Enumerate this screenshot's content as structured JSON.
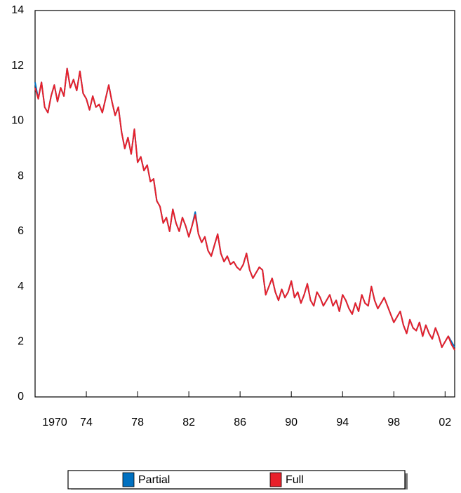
{
  "chart_data": {
    "type": "line",
    "x": [
      1970,
      1970.25,
      1970.5,
      1970.75,
      1971,
      1971.25,
      1971.5,
      1971.75,
      1972,
      1972.25,
      1972.5,
      1972.75,
      1973,
      1973.25,
      1973.5,
      1973.75,
      1974,
      1974.25,
      1974.5,
      1974.75,
      1975,
      1975.25,
      1975.5,
      1975.75,
      1976,
      1976.25,
      1976.5,
      1976.75,
      1977,
      1977.25,
      1977.5,
      1977.75,
      1978,
      1978.25,
      1978.5,
      1978.75,
      1979,
      1979.25,
      1979.5,
      1979.75,
      1980,
      1980.25,
      1980.5,
      1980.75,
      1981,
      1981.25,
      1981.5,
      1981.75,
      1982,
      1982.25,
      1982.5,
      1982.75,
      1983,
      1983.25,
      1983.5,
      1983.75,
      1984,
      1984.25,
      1984.5,
      1984.75,
      1985,
      1985.25,
      1985.5,
      1985.75,
      1986,
      1986.25,
      1986.5,
      1986.75,
      1987,
      1987.25,
      1987.5,
      1987.75,
      1988,
      1988.25,
      1988.5,
      1988.75,
      1989,
      1989.25,
      1989.5,
      1989.75,
      1990,
      1990.25,
      1990.5,
      1990.75,
      1991,
      1991.25,
      1991.5,
      1991.75,
      1992,
      1992.25,
      1992.5,
      1992.75,
      1993,
      1993.25,
      1993.5,
      1993.75,
      1994,
      1994.25,
      1994.5,
      1994.75,
      1995,
      1995.25,
      1995.5,
      1995.75,
      1996,
      1996.25,
      1996.5,
      1996.75,
      1997,
      1997.25,
      1997.5,
      1997.75,
      1998,
      1998.25,
      1998.5,
      1998.75,
      1999,
      1999.25,
      1999.5,
      1999.75,
      2000,
      2000.25,
      2000.5,
      2000.75,
      2001,
      2001.25,
      2001.5,
      2001.75,
      2002,
      2002.25,
      2002.5,
      2002.75
    ],
    "series": [
      {
        "name": "Partial",
        "color": "#0070c0",
        "values": [
          11.4,
          10.8,
          11.4,
          10.5,
          10.3,
          10.9,
          11.3,
          10.7,
          11.2,
          10.9,
          11.9,
          11.2,
          11.5,
          11.1,
          11.8,
          11.0,
          10.8,
          10.4,
          10.9,
          10.5,
          10.6,
          10.3,
          10.8,
          11.3,
          10.7,
          10.2,
          10.5,
          9.6,
          9.0,
          9.4,
          8.8,
          9.7,
          8.5,
          8.7,
          8.2,
          8.4,
          7.8,
          7.9,
          7.1,
          6.9,
          6.3,
          6.5,
          6.0,
          6.8,
          6.3,
          6.0,
          6.5,
          6.2,
          5.8,
          6.2,
          6.7,
          5.9,
          5.6,
          5.8,
          5.3,
          5.1,
          5.5,
          5.9,
          5.2,
          4.9,
          5.1,
          4.8,
          4.9,
          4.7,
          4.6,
          4.8,
          5.2,
          4.6,
          4.3,
          4.5,
          4.7,
          4.6,
          3.7,
          4.0,
          4.3,
          3.8,
          3.5,
          3.9,
          3.6,
          3.8,
          4.2,
          3.6,
          3.8,
          3.4,
          3.7,
          4.1,
          3.5,
          3.3,
          3.8,
          3.6,
          3.3,
          3.5,
          3.7,
          3.3,
          3.5,
          3.1,
          3.7,
          3.5,
          3.2,
          3.0,
          3.4,
          3.1,
          3.7,
          3.4,
          3.3,
          4.0,
          3.5,
          3.2,
          3.4,
          3.6,
          3.3,
          3.0,
          2.7,
          2.9,
          3.1,
          2.6,
          2.3,
          2.8,
          2.5,
          2.4,
          2.7,
          2.2,
          2.6,
          2.3,
          2.1,
          2.5,
          2.2,
          1.8,
          2.0,
          2.2,
          2.0,
          1.8
        ]
      },
      {
        "name": "Full",
        "color": "#e8202a",
        "values": [
          11.2,
          10.8,
          11.4,
          10.5,
          10.3,
          10.9,
          11.3,
          10.7,
          11.2,
          10.9,
          11.9,
          11.2,
          11.5,
          11.1,
          11.8,
          11.0,
          10.8,
          10.4,
          10.9,
          10.5,
          10.6,
          10.3,
          10.8,
          11.3,
          10.7,
          10.2,
          10.5,
          9.6,
          9.0,
          9.4,
          8.8,
          9.7,
          8.5,
          8.7,
          8.2,
          8.4,
          7.8,
          7.9,
          7.1,
          6.9,
          6.3,
          6.5,
          6.0,
          6.8,
          6.3,
          6.0,
          6.5,
          6.2,
          5.8,
          6.2,
          6.6,
          5.9,
          5.6,
          5.8,
          5.3,
          5.1,
          5.5,
          5.9,
          5.2,
          4.9,
          5.1,
          4.8,
          4.9,
          4.7,
          4.6,
          4.8,
          5.2,
          4.6,
          4.3,
          4.5,
          4.7,
          4.6,
          3.7,
          4.0,
          4.3,
          3.8,
          3.5,
          3.9,
          3.6,
          3.8,
          4.2,
          3.6,
          3.8,
          3.4,
          3.7,
          4.1,
          3.5,
          3.3,
          3.8,
          3.6,
          3.3,
          3.5,
          3.7,
          3.3,
          3.5,
          3.1,
          3.7,
          3.5,
          3.2,
          3.0,
          3.4,
          3.1,
          3.7,
          3.4,
          3.3,
          4.0,
          3.5,
          3.2,
          3.4,
          3.6,
          3.3,
          3.0,
          2.7,
          2.9,
          3.1,
          2.6,
          2.3,
          2.8,
          2.5,
          2.4,
          2.7,
          2.2,
          2.6,
          2.3,
          2.1,
          2.5,
          2.2,
          1.8,
          2.0,
          2.2,
          1.9,
          1.7
        ]
      }
    ],
    "xlim": [
      1970,
      2002.75
    ],
    "xticks": [
      {
        "value": 1970,
        "label": "1970"
      },
      {
        "value": 1974,
        "label": "74"
      },
      {
        "value": 1978,
        "label": "78"
      },
      {
        "value": 1982,
        "label": "82"
      },
      {
        "value": 1986,
        "label": "86"
      },
      {
        "value": 1990,
        "label": "90"
      },
      {
        "value": 1994,
        "label": "94"
      },
      {
        "value": 1998,
        "label": "98"
      },
      {
        "value": 2002,
        "label": "02"
      }
    ],
    "ylim": [
      0,
      14
    ],
    "yticks": [
      0,
      2,
      4,
      6,
      8,
      10,
      12,
      14
    ]
  }
}
